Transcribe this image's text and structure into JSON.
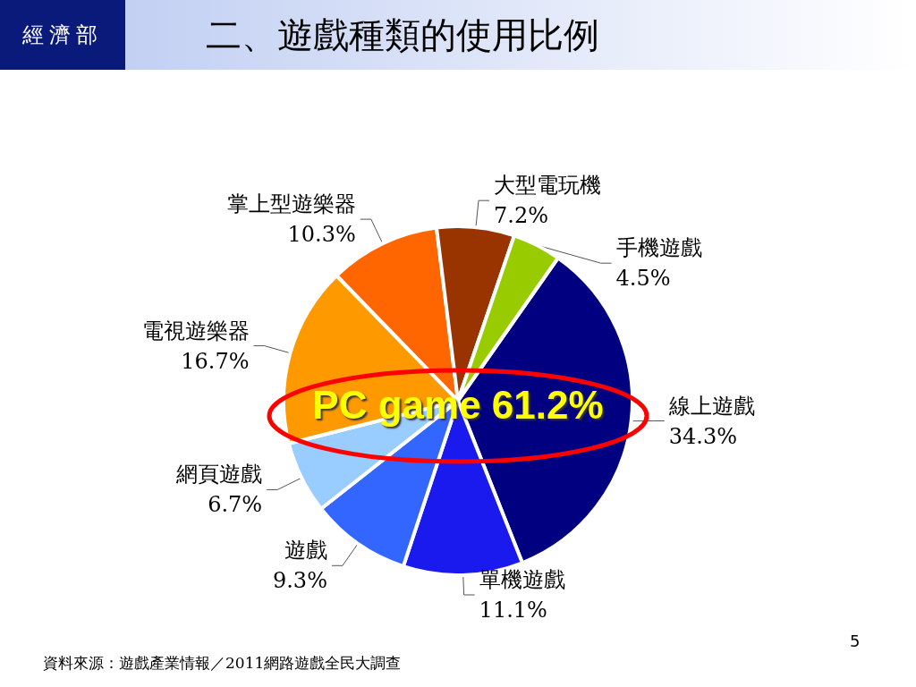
{
  "chart_data": {
    "type": "pie",
    "title": "二、遊戲種類的使用比例",
    "categories": [
      "線上遊戲",
      "單機遊戲",
      "遊戲",
      "網頁遊戲",
      "電視遊樂器",
      "掌上型遊樂器",
      "大型電玩機",
      "手機遊戲"
    ],
    "values": [
      34.3,
      11.1,
      9.3,
      6.7,
      16.7,
      10.3,
      7.2,
      4.5
    ],
    "value_labels": [
      "34.3%",
      "11.1%",
      "9.3%",
      "6.7%",
      "16.7%",
      "10.3%",
      "7.2%",
      "4.5%"
    ],
    "colors": [
      "#000080",
      "#1a1aee",
      "#3366ff",
      "#99ccff",
      "#ff9900",
      "#ff6600",
      "#993300",
      "#99cc00"
    ],
    "legend": false,
    "annotations": [
      "經濟部",
      {
        "text": "PC game 61.2%"
      },
      "5",
      "資料來源：遊戲產業情報／2011網路遊戲全民大調查"
    ]
  }
}
